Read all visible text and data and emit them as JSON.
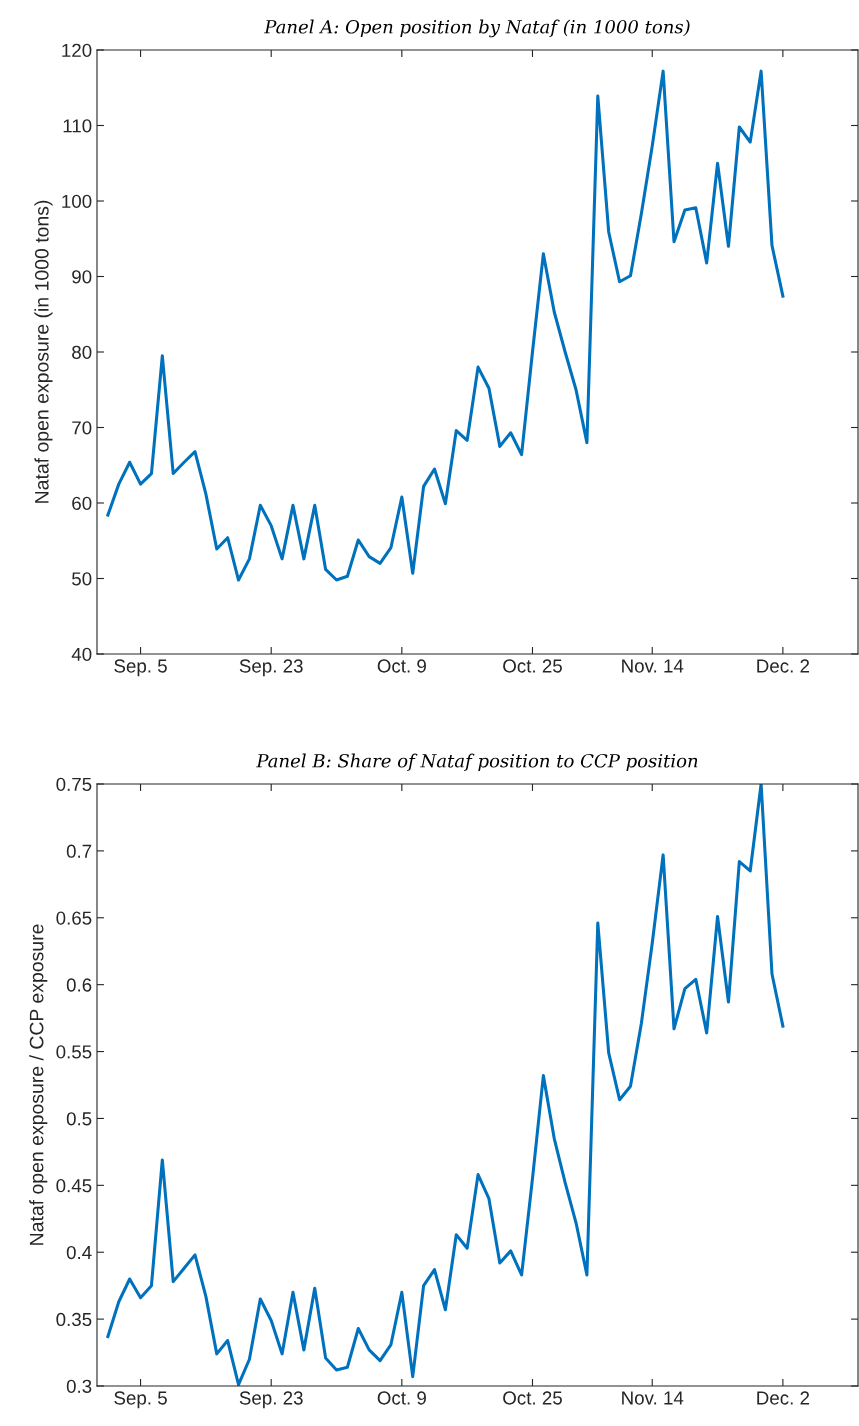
{
  "chart_data": [
    {
      "type": "line",
      "title": "Panel A: Open position by Nataf (in 1000 tons)",
      "ylabel": "Nataf open exposure (in 1000 tons)",
      "categories": [
        null,
        null,
        null,
        "Sep. 5",
        null,
        null,
        null,
        null,
        null,
        null,
        null,
        null,
        null,
        null,
        null,
        "Sep. 23",
        null,
        null,
        null,
        null,
        null,
        null,
        null,
        null,
        null,
        null,
        null,
        "Oct. 9",
        null,
        null,
        null,
        null,
        null,
        null,
        null,
        null,
        null,
        null,
        null,
        "Oct. 25",
        null,
        null,
        null,
        null,
        null,
        null,
        null,
        null,
        null,
        null,
        "Nov. 14",
        null,
        null,
        null,
        null,
        null,
        null,
        null,
        null,
        null,
        null,
        null,
        "Dec. 2"
      ],
      "series": [
        {
          "color": "#0072bd",
          "values": [
            58.4,
            62.5,
            65.4,
            62.5,
            63.9,
            79.5,
            63.9,
            65.4,
            66.8,
            61.2,
            53.9,
            55.4,
            49.8,
            52.6,
            59.7,
            57.0,
            52.6,
            59.7,
            52.6,
            59.7,
            51.2,
            49.8,
            50.3,
            55.1,
            52.9,
            52.0,
            54.1,
            60.8,
            50.7,
            62.2,
            64.5,
            59.9,
            69.6,
            68.3,
            78.0,
            75.2,
            67.5,
            69.3,
            66.4,
            80,
            93.0,
            85.3,
            80.0,
            75.0,
            68.0,
            113.9,
            95.9,
            89.3,
            90.1,
            98.3,
            107.3,
            117.2,
            94.6,
            98.8,
            99.1,
            91.8,
            105.0,
            94.0,
            109.8,
            107.8,
            117.2,
            94.1,
            87.4
          ]
        }
      ],
      "ylim": [
        40,
        120
      ],
      "yticks": [
        40,
        50,
        60,
        70,
        80,
        90,
        100,
        110,
        120
      ],
      "grid": false,
      "legend": false,
      "line_style": "solid",
      "marker": "none"
    },
    {
      "type": "line",
      "title": "Panel B: Share of Nataf position to CCP position",
      "ylabel": "Nataf open exposure / CCP exposure",
      "categories": [
        null,
        null,
        null,
        "Sep. 5",
        null,
        null,
        null,
        null,
        null,
        null,
        null,
        null,
        null,
        null,
        null,
        "Sep. 23",
        null,
        null,
        null,
        null,
        null,
        null,
        null,
        null,
        null,
        null,
        null,
        "Oct. 9",
        null,
        null,
        null,
        null,
        null,
        null,
        null,
        null,
        null,
        null,
        null,
        "Oct. 25",
        null,
        null,
        null,
        null,
        null,
        null,
        null,
        null,
        null,
        null,
        "Nov. 14",
        null,
        null,
        null,
        null,
        null,
        null,
        null,
        null,
        null,
        null,
        null,
        "Dec. 2"
      ],
      "series": [
        {
          "color": "#0072bd",
          "values": [
            0.337,
            0.363,
            0.38,
            0.366,
            0.375,
            0.469,
            0.378,
            0.388,
            0.398,
            0.367,
            0.324,
            0.334,
            0.301,
            0.32,
            0.365,
            0.349,
            0.324,
            0.37,
            0.327,
            0.373,
            0.321,
            0.312,
            0.314,
            0.343,
            0.327,
            0.319,
            0.331,
            0.37,
            0.307,
            0.375,
            0.387,
            0.357,
            0.413,
            0.403,
            0.458,
            0.44,
            0.392,
            0.401,
            0.383,
            0.455,
            0.532,
            0.485,
            0.452,
            0.422,
            0.383,
            0.646,
            0.549,
            0.514,
            0.524,
            0.571,
            0.631,
            0.697,
            0.567,
            0.597,
            0.604,
            0.564,
            0.651,
            0.587,
            0.692,
            0.685,
            0.75,
            0.608,
            0.569
          ]
        }
      ],
      "ylim": [
        0.3,
        0.75
      ],
      "yticks": [
        0.3,
        0.35,
        0.4,
        0.45,
        0.5,
        0.55,
        0.6,
        0.65,
        0.7,
        0.75
      ],
      "grid": false,
      "legend": false,
      "line_style": "solid",
      "marker": "none"
    }
  ]
}
